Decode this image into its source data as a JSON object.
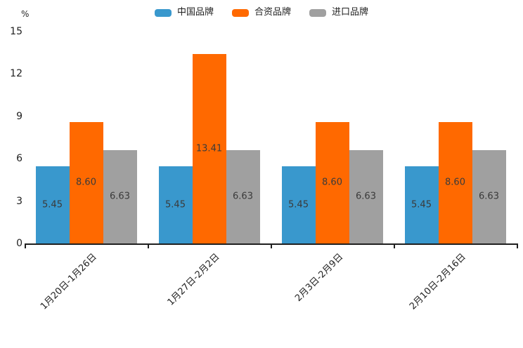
{
  "chart_data": {
    "type": "bar",
    "unit_label": "%",
    "categories": [
      "1月20日-1月26日",
      "1月27日-2月2日",
      "2月3日-2月9日",
      "2月10日-2月16日"
    ],
    "series": [
      {
        "name": "中国品牌",
        "color": "#3998cd",
        "values": [
          5.45,
          5.45,
          5.45,
          5.45
        ]
      },
      {
        "name": "合资品牌",
        "color": "#ff6900",
        "values": [
          8.6,
          13.41,
          8.6,
          8.6
        ]
      },
      {
        "name": "进口品牌",
        "color": "#a0a0a0",
        "values": [
          6.63,
          6.63,
          6.63,
          6.63
        ]
      }
    ],
    "value_label_decimals": 2,
    "ylim": [
      0,
      15
    ],
    "yticks": [
      0,
      3,
      6,
      9,
      12,
      15
    ],
    "grid": false,
    "legend_position": "top"
  }
}
